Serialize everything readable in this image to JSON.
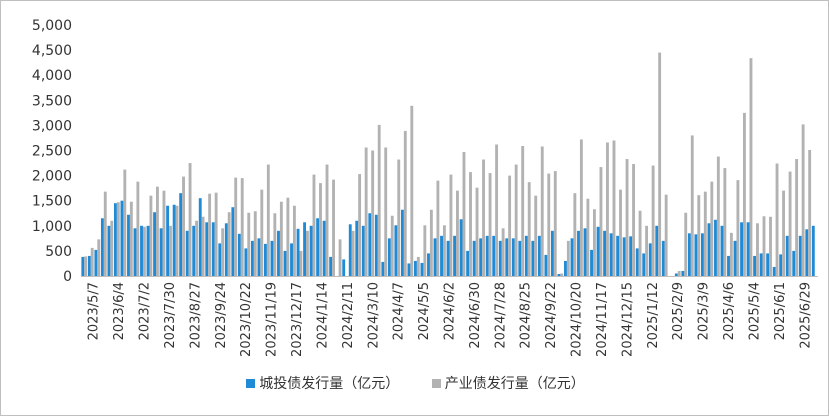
{
  "chart_data": {
    "type": "bar",
    "ylim": [
      0,
      5000
    ],
    "yticks": [
      "0",
      "500",
      "1,000",
      "1,500",
      "2,000",
      "2,500",
      "3,000",
      "3,500",
      "4,000",
      "4,500",
      "5,000"
    ],
    "x_tick_labels": [
      "2023/5/7",
      "2023/6/4",
      "2023/7/2",
      "2023/7/30",
      "2023/8/27",
      "2023/9/24",
      "2023/10/22",
      "2023/11/19",
      "2023/12/17",
      "2024/1/14",
      "2024/2/11",
      "2024/3/10",
      "2024/4/7",
      "2024/5/5",
      "2024/6/2",
      "2024/6/30",
      "2024/7/28",
      "2024/8/25",
      "2024/9/22",
      "2024/10/20",
      "2024/11/17",
      "2024/12/15",
      "2025/1/12",
      "2025/2/9",
      "2025/3/9",
      "2025/4/6",
      "2025/5/4",
      "2025/6/1",
      "2025/6/29"
    ],
    "series": [
      {
        "name": "城投债发行量（亿元）",
        "color": "#1f8ad6",
        "values": [
          380,
          400,
          520,
          1150,
          1000,
          1450,
          1500,
          1220,
          950,
          1000,
          1000,
          1270,
          950,
          1400,
          1420,
          1650,
          900,
          1000,
          1550,
          1070,
          1070,
          650,
          1050,
          1370,
          840,
          550,
          700,
          750,
          640,
          700,
          900,
          500,
          650,
          940,
          1070,
          1000,
          1150,
          1100,
          380,
          0,
          330,
          1030,
          1100,
          1000,
          1250,
          1220,
          280,
          750,
          1010,
          1320,
          250,
          300,
          260,
          450,
          750,
          800,
          700,
          800,
          1130,
          500,
          700,
          750,
          800,
          800,
          700,
          750,
          750,
          700,
          800,
          700,
          800,
          420,
          900,
          40,
          300,
          750,
          900,
          950,
          520,
          980,
          900,
          850,
          800,
          770,
          790,
          550,
          450,
          650,
          1000,
          700,
          0,
          50,
          100,
          850,
          830,
          850,
          1050,
          1120,
          1000,
          400,
          700,
          1070,
          1070,
          400,
          450,
          450,
          180,
          430,
          800,
          500,
          800,
          930,
          1000
        ]
      },
      {
        "name": "产业债发行量（亿元）",
        "color": "#b2b2b2",
        "values": [
          390,
          560,
          730,
          1680,
          1100,
          1470,
          2120,
          1480,
          1880,
          980,
          1600,
          1780,
          1700,
          1000,
          1400,
          1980,
          2250,
          1100,
          1180,
          1640,
          1660,
          950,
          1270,
          1960,
          1950,
          1260,
          1290,
          1720,
          2220,
          1250,
          1480,
          1560,
          1400,
          500,
          900,
          2020,
          1850,
          2220,
          1920,
          730,
          0,
          900,
          2030,
          2560,
          2500,
          3010,
          2560,
          1200,
          2320,
          2890,
          3390,
          380,
          1010,
          1320,
          1900,
          1010,
          2020,
          1700,
          2470,
          2070,
          1760,
          2320,
          2050,
          2620,
          950,
          2000,
          2220,
          2590,
          1870,
          1600,
          2580,
          2040,
          2090,
          50,
          700,
          1650,
          2720,
          1540,
          1330,
          2170,
          2660,
          2700,
          1720,
          2330,
          2230,
          1300,
          1000,
          2200,
          4450,
          1620,
          0,
          100,
          1260,
          2800,
          1610,
          1680,
          1880,
          2380,
          2150,
          860,
          1910,
          3250,
          4340,
          1050,
          1190,
          1180,
          2240,
          1700,
          2080,
          2330,
          3020,
          2510
        ]
      }
    ]
  }
}
